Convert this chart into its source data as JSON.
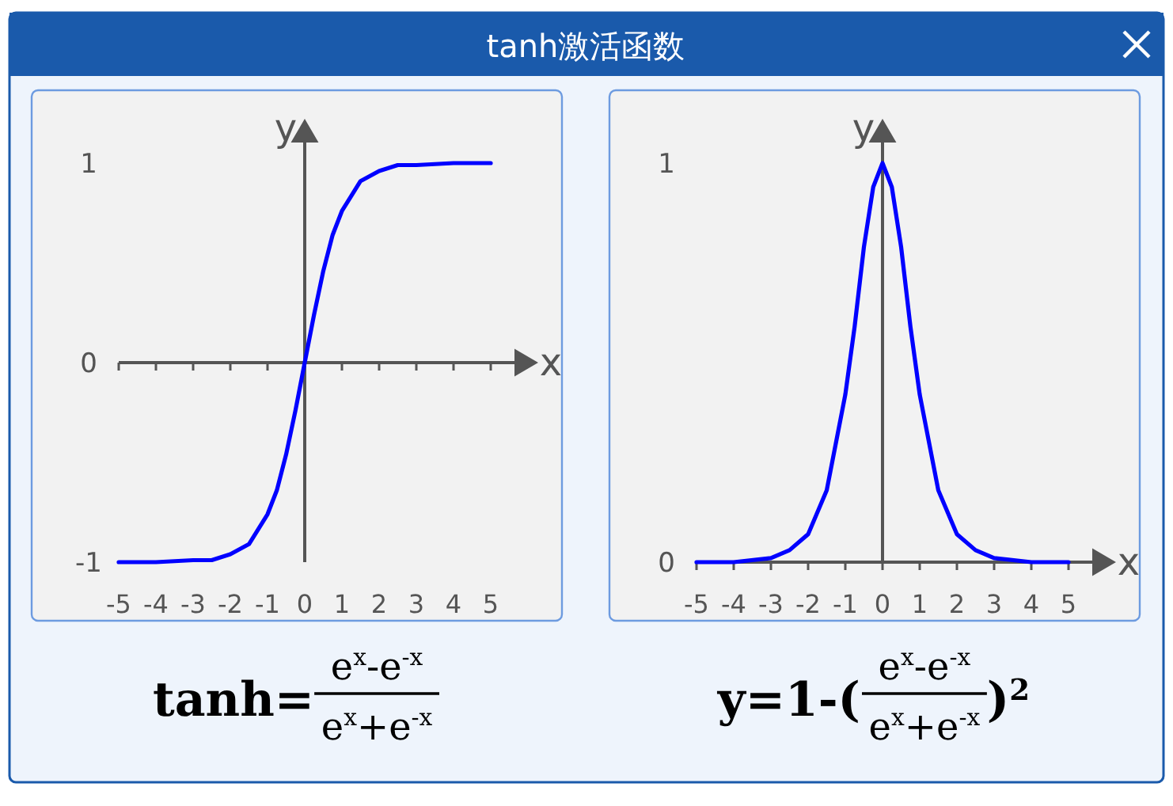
{
  "chart_data": [
    {
      "type": "line",
      "title": "tanh激活函数",
      "xlabel": "x",
      "ylabel": "y",
      "x": [
        -5,
        -4,
        -3,
        -2.5,
        -2,
        -1.5,
        -1,
        -0.75,
        -0.5,
        -0.25,
        0,
        0.25,
        0.5,
        0.75,
        1,
        1.5,
        2,
        2.5,
        3,
        4,
        5
      ],
      "values": [
        -1,
        -1,
        -0.99,
        -0.99,
        -0.96,
        -0.91,
        -0.76,
        -0.64,
        -0.46,
        -0.24,
        0,
        0.24,
        0.46,
        0.64,
        0.76,
        0.91,
        0.96,
        0.99,
        0.99,
        1,
        1
      ],
      "color": "#0000ff",
      "xlim": [
        -5,
        5
      ],
      "ylim": [
        -1,
        1
      ],
      "xticks": [
        -5,
        -4,
        -3,
        -2,
        -1,
        0,
        1,
        2,
        3,
        4,
        5
      ],
      "yticks": [
        -1,
        0,
        1
      ],
      "annotations": [
        "tanh=",
        "e$^{x}$-e$^{-x}$",
        "e$^{x}$+e$^{-x}$"
      ]
    },
    {
      "type": "line",
      "xlabel": "x",
      "ylabel": "y",
      "x": [
        -5,
        -4,
        -3,
        -2.5,
        -2,
        -1.5,
        -1,
        -0.75,
        -0.5,
        -0.25,
        0,
        0.25,
        0.5,
        0.75,
        1,
        1.5,
        2,
        2.5,
        3,
        4,
        5
      ],
      "values": [
        0,
        0,
        0.01,
        0.03,
        0.07,
        0.18,
        0.42,
        0.59,
        0.79,
        0.94,
        1,
        0.94,
        0.79,
        0.59,
        0.42,
        0.18,
        0.07,
        0.03,
        0.01,
        0,
        0
      ],
      "color": "#0000ff",
      "xlim": [
        -5,
        5
      ],
      "ylim": [
        0,
        1
      ],
      "xticks": [
        -5,
        -4,
        -3,
        -2,
        -1,
        0,
        1,
        2,
        3,
        4,
        5
      ],
      "yticks": [
        0,
        1
      ],
      "annotations": [
        "y=1-(",
        "e$^{x}$-e$^{-x}$",
        "e$^{x}$+e$^{-x}$",
        ")$^{2}$"
      ]
    }
  ]
}
